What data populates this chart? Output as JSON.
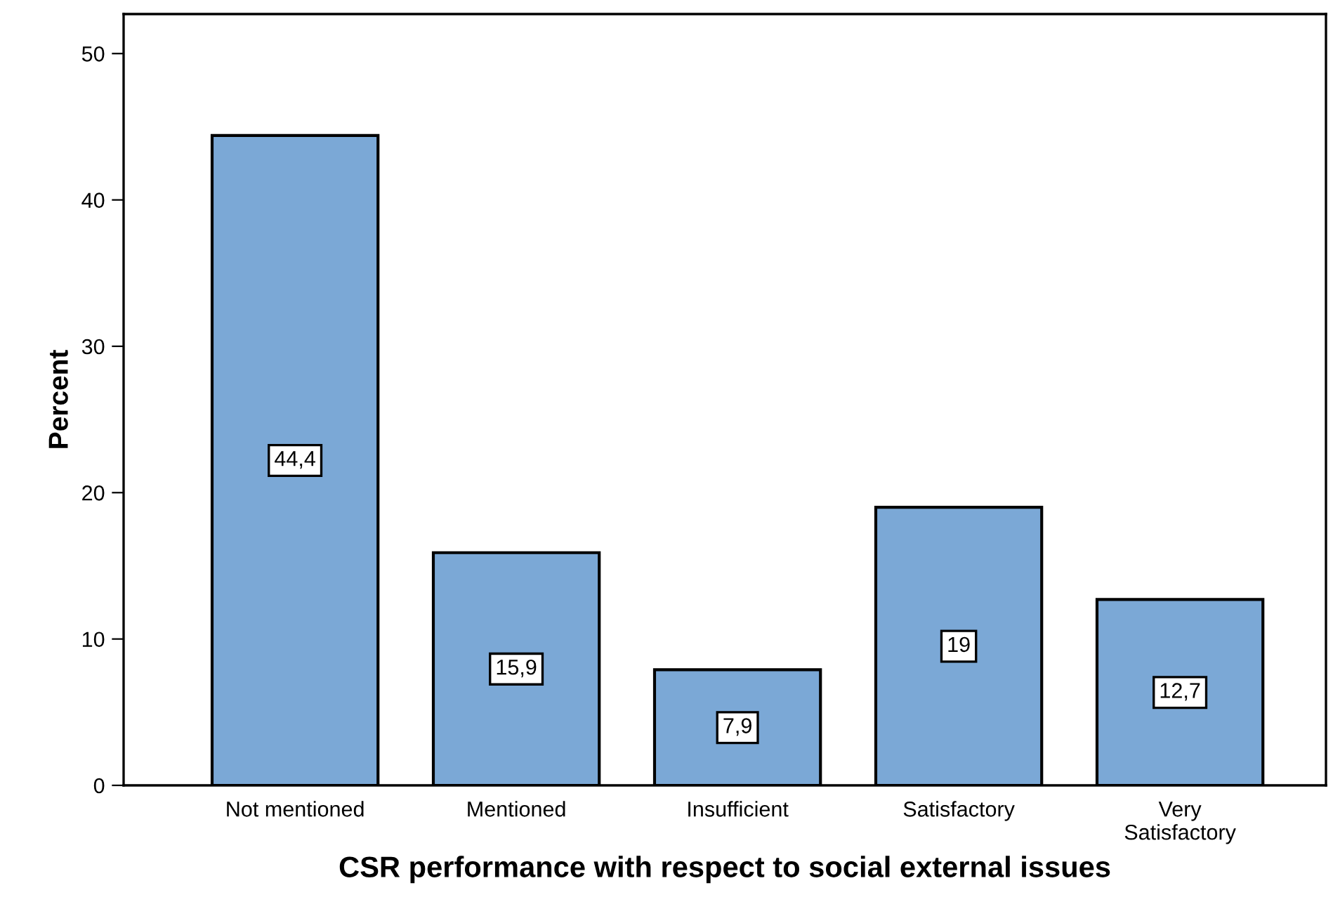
{
  "chart_data": {
    "type": "bar",
    "xlabel": "CSR performance with respect to social external issues",
    "ylabel": "Percent",
    "categories": [
      "Not mentioned",
      "Mentioned",
      "Insufficient",
      "Satisfactory",
      "Very\nSatisfactory"
    ],
    "values": [
      44.4,
      15.9,
      7.9,
      19,
      12.7
    ],
    "value_labels": [
      "44,4",
      "15,9",
      "7,9",
      "19",
      "12,7"
    ],
    "color": "#7ba8d6",
    "ylim": [
      0,
      52.7
    ],
    "yticks": [
      0,
      10,
      20,
      30,
      40,
      50
    ],
    "grid": false,
    "legend": false
  }
}
